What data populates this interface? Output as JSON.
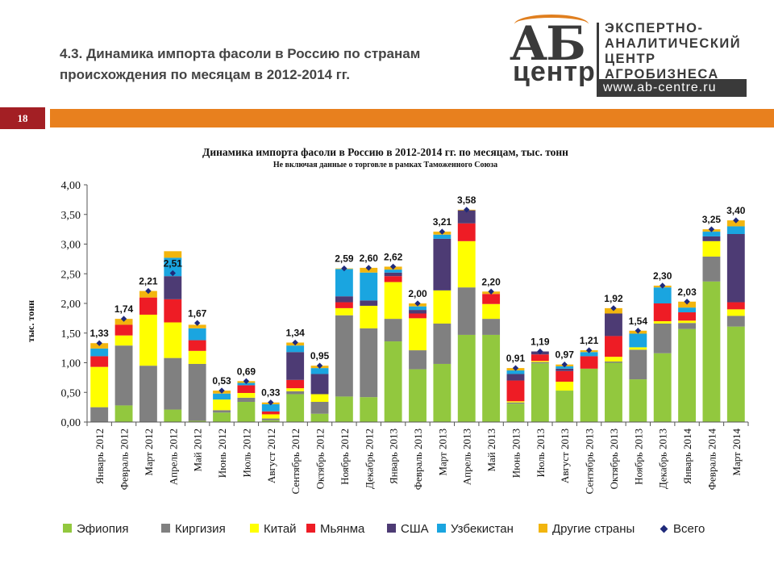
{
  "slide": {
    "title_line1": "4.3. Динамика импорта фасоли в Россию по странам",
    "title_line2": "происхождения по месяцам в 2012-2014 гг.",
    "page_number": "18"
  },
  "logo": {
    "mark_letters": "АБ",
    "mark_word": "центр",
    "line1": "ЭКСПЕРТНО-",
    "line2": "АНАЛИТИЧЕСКИЙ",
    "line3": "ЦЕНТР",
    "line4": "АГРОБИЗНЕСА",
    "website": "www.ab-centre.ru"
  },
  "colors": {
    "accent": "#e8801e",
    "badge": "#a31f24"
  },
  "chart_data": {
    "type": "bar",
    "stacked": true,
    "title": "Динамика импорта фасоли в Россию в 2012-2014 гг. по месяцам, тыс. тонн",
    "subtitle": "Не включая данные о торговле в рамках Таможенного Союза",
    "ylabel": "тыс. тонн",
    "xlabel": "",
    "ylim": [
      0,
      4
    ],
    "yticks": [
      "0,00",
      "0,50",
      "1,00",
      "1,50",
      "2,00",
      "2,50",
      "3,00",
      "3,50",
      "4,00"
    ],
    "grid": false,
    "legend_position": "bottom",
    "categories": [
      "Январь 2012",
      "Февраль 2012",
      "Март 2012",
      "Апрель 2012",
      "Май 2012",
      "Июнь 2012",
      "Июль 2012",
      "Август 2012",
      "Сентябрь 2012",
      "Октябрь 2012",
      "Ноябрь 2012",
      "Декабрь 2012",
      "Январь 2013",
      "Февраль 2013",
      "Март 2013",
      "Апрель 2013",
      "Май 2013",
      "Июнь 2013",
      "Июль 2013",
      "Август 2013",
      "Сентябрь 2013",
      "Октябрь 2013",
      "Ноябрь 2013",
      "Декабрь 2013",
      "Январь 2014",
      "Февраль 2014",
      "Март 2014"
    ],
    "series": [
      {
        "name": "Эфиопия",
        "color": "#92c83e",
        "values": [
          0.0,
          0.28,
          0.0,
          0.21,
          0.02,
          0.16,
          0.34,
          0.03,
          0.47,
          0.14,
          0.43,
          0.42,
          1.36,
          0.89,
          0.98,
          1.47,
          1.47,
          0.31,
          0.99,
          0.53,
          0.9,
          1.0,
          0.72,
          1.16,
          1.57,
          2.37,
          1.61
        ]
      },
      {
        "name": "Киргизия",
        "color": "#808080",
        "values": [
          0.25,
          1.01,
          0.95,
          0.87,
          0.96,
          0.04,
          0.07,
          0.03,
          0.05,
          0.2,
          1.37,
          1.16,
          0.38,
          0.32,
          0.68,
          0.8,
          0.27,
          0.02,
          0.02,
          0.0,
          0.0,
          0.02,
          0.5,
          0.5,
          0.1,
          0.42,
          0.18
        ]
      },
      {
        "name": "Китай",
        "color": "#ffff00",
        "values": [
          0.68,
          0.17,
          0.86,
          0.6,
          0.22,
          0.18,
          0.08,
          0.07,
          0.05,
          0.13,
          0.12,
          0.38,
          0.62,
          0.54,
          0.56,
          0.78,
          0.25,
          0.02,
          0.02,
          0.15,
          0.0,
          0.08,
          0.04,
          0.04,
          0.04,
          0.26,
          0.11
        ]
      },
      {
        "name": "Мьянма",
        "color": "#ee1c25",
        "values": [
          0.18,
          0.18,
          0.29,
          0.39,
          0.18,
          0.0,
          0.13,
          0.05,
          0.14,
          0.0,
          0.1,
          0.0,
          0.1,
          0.08,
          0.0,
          0.3,
          0.17,
          0.35,
          0.11,
          0.18,
          0.21,
          0.35,
          0.0,
          0.3,
          0.14,
          0.0,
          0.12
        ]
      },
      {
        "name": "США",
        "color": "#4d3b74",
        "values": [
          0.0,
          0.0,
          0.0,
          0.39,
          0.0,
          0.0,
          0.0,
          0.0,
          0.47,
          0.34,
          0.1,
          0.09,
          0.06,
          0.06,
          0.87,
          0.22,
          0.0,
          0.11,
          0.05,
          0.04,
          0.0,
          0.38,
          0.0,
          0.0,
          0.0,
          0.08,
          1.15
        ]
      },
      {
        "name": "Узбекистан",
        "color": "#1aa5e0",
        "values": [
          0.13,
          0.0,
          0.0,
          0.31,
          0.2,
          0.1,
          0.04,
          0.12,
          0.11,
          0.1,
          0.46,
          0.47,
          0.05,
          0.06,
          0.07,
          0.0,
          0.0,
          0.06,
          0.0,
          0.04,
          0.07,
          0.0,
          0.23,
          0.27,
          0.08,
          0.08,
          0.13
        ]
      },
      {
        "name": "Другие страны",
        "color": "#f2b50e",
        "values": [
          0.09,
          0.1,
          0.11,
          0.11,
          0.06,
          0.05,
          0.03,
          0.03,
          0.05,
          0.04,
          0.01,
          0.08,
          0.05,
          0.05,
          0.05,
          0.01,
          0.04,
          0.04,
          0.0,
          0.03,
          0.03,
          0.09,
          0.05,
          0.03,
          0.1,
          0.04,
          0.1
        ]
      }
    ],
    "totals": {
      "name": "Всего",
      "color": "#1f2a7a",
      "values": [
        1.33,
        1.74,
        2.21,
        2.51,
        1.67,
        0.53,
        0.69,
        0.33,
        1.34,
        0.95,
        2.59,
        2.6,
        2.62,
        2.0,
        3.21,
        3.58,
        2.2,
        0.91,
        1.19,
        0.97,
        1.21,
        1.92,
        1.54,
        2.3,
        2.03,
        3.25,
        3.4
      ],
      "labels": [
        "1,33",
        "1,74",
        "2,21",
        "2,51",
        "1,67",
        "0,53",
        "0,69",
        "0,33",
        "1,34",
        "0,95",
        "2,59",
        "2,60",
        "2,62",
        "2,00",
        "3,21",
        "3,58",
        "2,20",
        "0,91",
        "1,19",
        "0,97",
        "1,21",
        "1,92",
        "1,54",
        "2,30",
        "2,03",
        "3,25",
        "3,40"
      ]
    }
  }
}
